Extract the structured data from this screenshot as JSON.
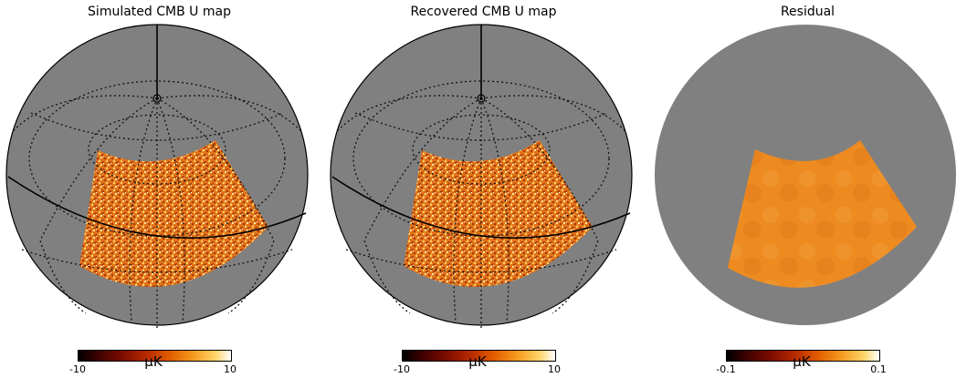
{
  "panels": [
    {
      "title": "Simulated CMB U map",
      "colorbar": {
        "min": "-10",
        "max": "10",
        "unit": "μK"
      }
    },
    {
      "title": "Recovered CMB U map",
      "colorbar": {
        "min": "-10",
        "max": "10",
        "unit": "μK"
      }
    },
    {
      "title": "Residual",
      "colorbar": {
        "min": "-0.1",
        "max": "0.1",
        "unit": "μK"
      }
    }
  ],
  "colors": {
    "sphere_gray": "#808080",
    "patch_orange": "#e6801e",
    "residual_orange": "#ee8f22"
  }
}
